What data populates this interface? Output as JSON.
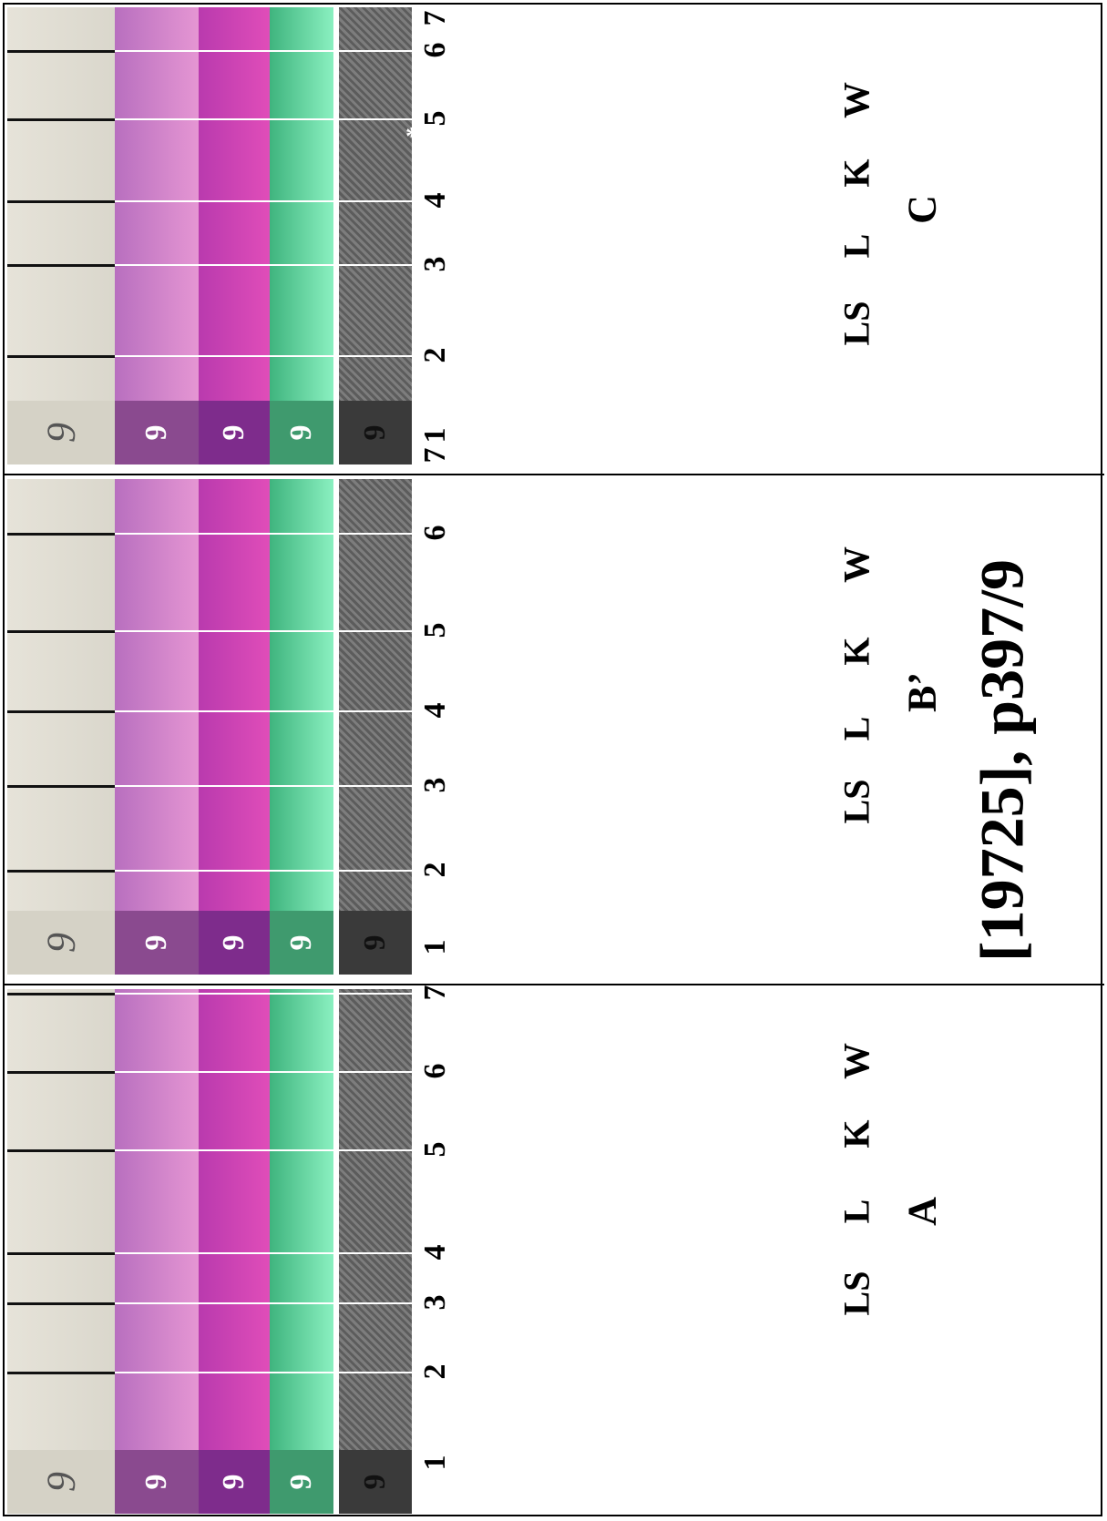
{
  "title": "[19725], p397/9",
  "panels": [
    {
      "id": "A",
      "label": "A",
      "lanes": [
        "LS",
        "L",
        "K",
        "W"
      ],
      "band_numbers": [
        "1",
        "2",
        "3",
        "4",
        "5",
        "6",
        "7"
      ],
      "origin_mark": "9"
    },
    {
      "id": "B",
      "label": "B’",
      "lanes": [
        "LS",
        "L",
        "K",
        "W"
      ],
      "band_numbers": [
        "1",
        "2",
        "3",
        "4",
        "5",
        "6",
        "7"
      ],
      "origin_mark": "9"
    },
    {
      "id": "C",
      "label": "C",
      "lanes": [
        "LS",
        "L",
        "K",
        "W"
      ],
      "band_numbers": [
        "1",
        "2",
        "3",
        "4",
        "5",
        "6",
        "7"
      ],
      "origin_mark": "9",
      "annotation": "*"
    }
  ],
  "colors": {
    "paper": "#e4e1d6",
    "ls": "#d98ac9",
    "l": "#d640b5",
    "k": "#6fe0a8",
    "w": "#6f6f6f"
  }
}
